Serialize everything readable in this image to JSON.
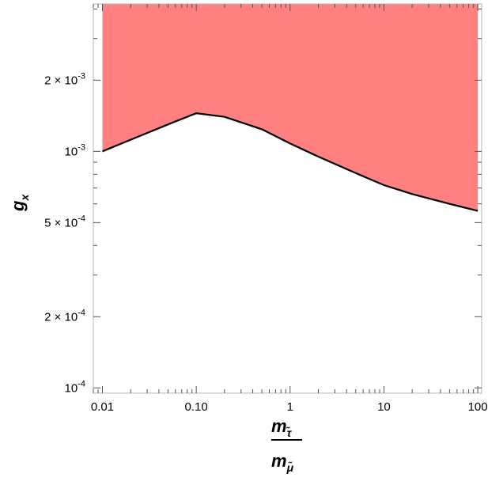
{
  "chart_data": {
    "type": "area",
    "title": "",
    "xlabel": {
      "numerator": "m",
      "numerator_sub": "τ̃",
      "denominator": "m",
      "denominator_sub": "μ̃"
    },
    "ylabel": {
      "main": "g",
      "sub": "x"
    },
    "xscale": "log",
    "yscale": "log",
    "xlim": [
      0.008,
      110
    ],
    "ylim": [
      9.5e-05,
      0.0042
    ],
    "xticks": [
      {
        "value": 0.01,
        "label": "0.01"
      },
      {
        "value": 0.1,
        "label": "0.10"
      },
      {
        "value": 1,
        "label": "1"
      },
      {
        "value": 10,
        "label": "10"
      },
      {
        "value": 100,
        "label": "100"
      }
    ],
    "yticks": [
      {
        "value": 0.0001,
        "mant": "10",
        "exp": "-4"
      },
      {
        "value": 0.0002,
        "mant": "2 × 10",
        "exp": "-4"
      },
      {
        "value": 0.0005,
        "mant": "5 × 10",
        "exp": "-4"
      },
      {
        "value": 0.001,
        "mant": "10",
        "exp": "-3"
      },
      {
        "value": 0.002,
        "mant": "2 × 10",
        "exp": "-3"
      }
    ],
    "series": [
      {
        "fill": "excluded-above",
        "color": "#ff8080",
        "line_color": "#000000",
        "x": [
          0.01,
          0.02,
          0.05,
          0.1,
          0.2,
          0.5,
          1,
          2,
          5,
          10,
          20,
          50,
          100
        ],
        "y": [
          0.001,
          0.00112,
          0.0013,
          0.00145,
          0.0014,
          0.00124,
          0.00108,
          0.00095,
          0.00081,
          0.00072,
          0.00066,
          0.0006,
          0.00056
        ]
      }
    ],
    "grid": false,
    "legend": "none"
  }
}
